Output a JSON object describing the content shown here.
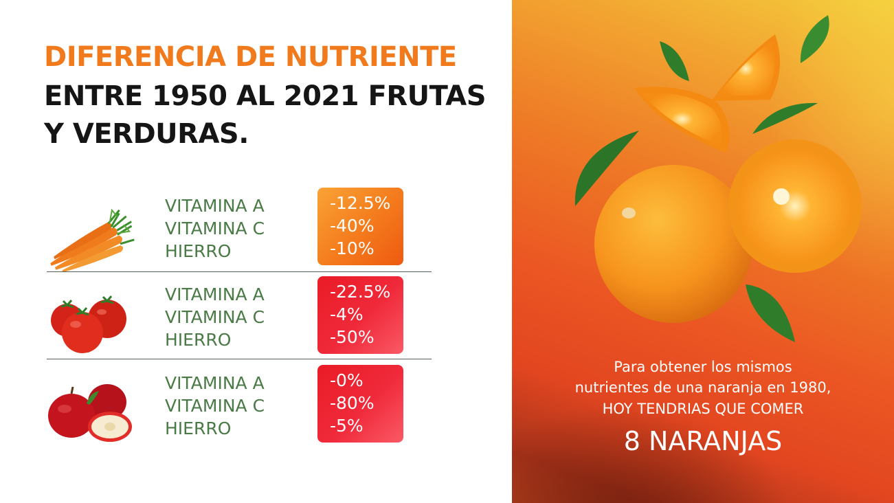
{
  "title": {
    "line1": "DIFERENCIA DE NUTRIENTE",
    "line2": "ENTRE 1950 AL 2021 FRUTAS",
    "line3": "Y VERDURAS."
  },
  "rows": [
    {
      "produce": "carrots",
      "nutrients": [
        "VITAMINA A",
        "VITAMINA C",
        "HIERRO"
      ],
      "values": [
        "-12.5%",
        "-40%",
        "-10%"
      ],
      "box_color": "#f47a1c"
    },
    {
      "produce": "tomatoes",
      "nutrients": [
        "VITAMINA A",
        "VITAMINA C",
        "HIERRO"
      ],
      "values": [
        "-22.5%",
        "-4%",
        "-50%"
      ],
      "box_color": "#ee2532"
    },
    {
      "produce": "apples",
      "nutrients": [
        "VITAMINA A",
        "VITAMINA C",
        "HIERRO"
      ],
      "values": [
        "-0%",
        "-80%",
        "-5%"
      ],
      "box_color": "#ee2532"
    }
  ],
  "callout": {
    "line1": "Para obtener los mismos",
    "line2": "nutrientes de una naranja en 1980,",
    "line3": "HOY TENDRIAS QUE COMER",
    "highlight": "8 NARANJAS"
  },
  "colors": {
    "title_accent": "#f07a1c",
    "title_dark": "#151515",
    "nutrient_label": "#4a7a46",
    "panel_top": "#f4cd3c",
    "panel_bottom": "#e24620"
  }
}
